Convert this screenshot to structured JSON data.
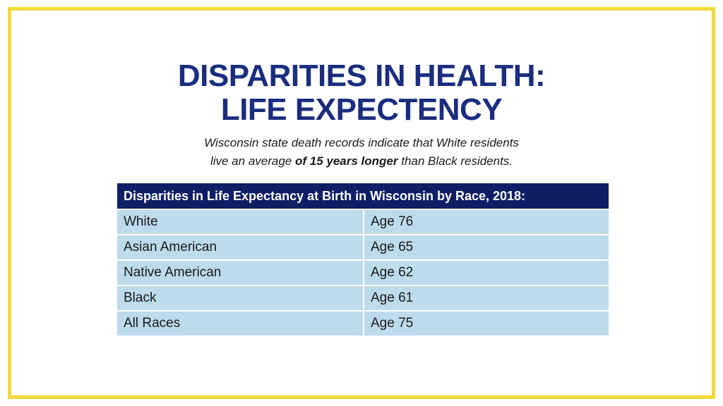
{
  "slide": {
    "title_line1": "DISPARITIES IN HEALTH:",
    "title_line2": "LIFE EXPECTENCY",
    "subtitle_line1": "Wisconsin state death records indicate that White residents",
    "subtitle_line2_before": "live an average ",
    "subtitle_line2_bold": "of 15 years longer",
    "subtitle_line2_after": " than Black residents."
  },
  "table": {
    "header": "Disparities in Life Expectancy at Birth in Wisconsin by Race, 2018:",
    "rows": [
      {
        "race": "White",
        "age": "Age 76"
      },
      {
        "race": "Asian American",
        "age": "Age 65"
      },
      {
        "race": "Native American",
        "age": "Age 62"
      },
      {
        "race": "Black",
        "age": "Age 61"
      },
      {
        "race": "All Races",
        "age": "Age 75"
      }
    ]
  },
  "colors": {
    "border": "#f3d93b",
    "title": "#1b2d7f",
    "header_bg": "#0e1f66",
    "cell_bg": "#bcdbeb"
  }
}
